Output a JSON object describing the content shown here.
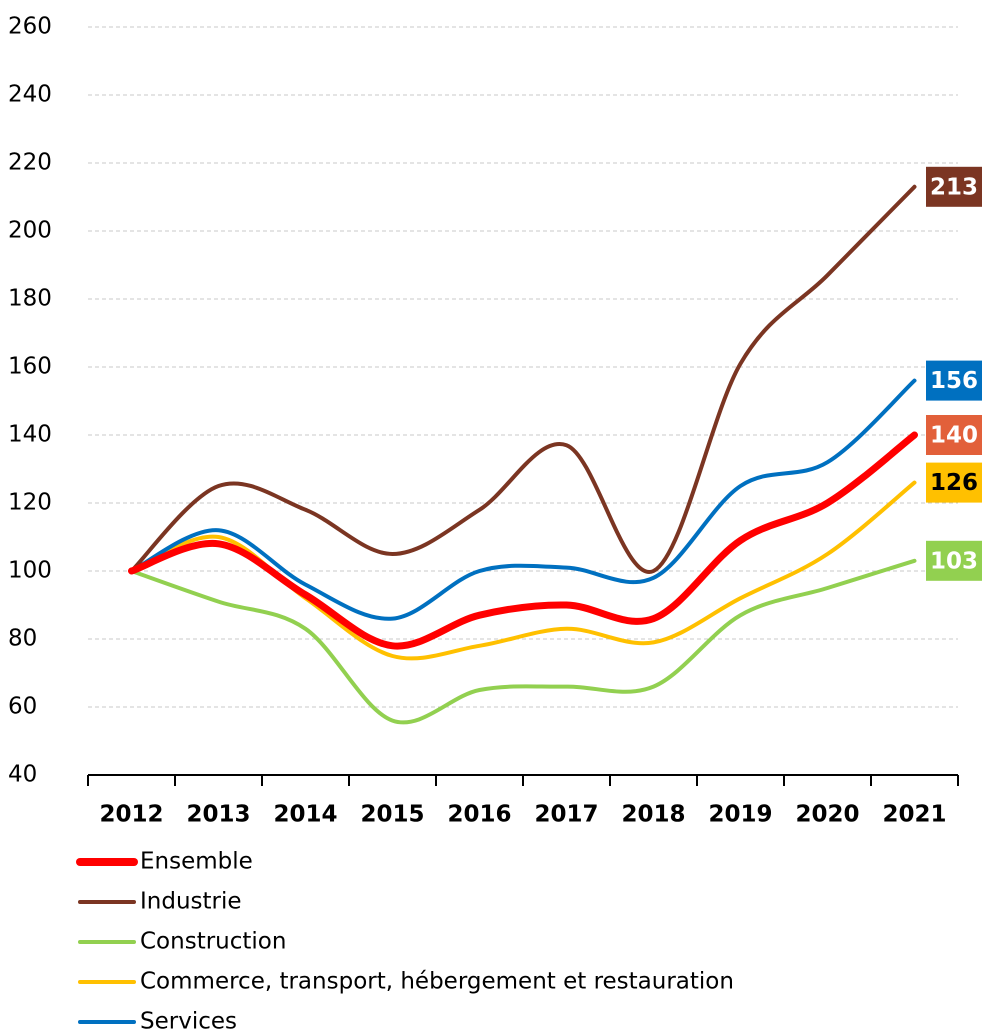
{
  "chart_data": {
    "type": "line",
    "categories": [
      "2012",
      "2013",
      "2014",
      "2015",
      "2016",
      "2017",
      "2018",
      "2019",
      "2020",
      "2021"
    ],
    "series": [
      {
        "name": "Ensemble",
        "color": "#ff0000",
        "label_color": "#e2603a",
        "label_text_color": "#ffffff",
        "values": [
          100,
          108,
          93,
          78,
          87,
          90,
          86,
          109,
          120,
          140
        ]
      },
      {
        "name": "Industrie",
        "color": "#7b3522",
        "label_color": "#7b3522",
        "label_text_color": "#ffffff",
        "values": [
          100,
          125,
          118,
          105,
          118,
          137,
          100,
          161,
          187,
          213
        ]
      },
      {
        "name": "Construction",
        "color": "#92d050",
        "label_color": "#92d050",
        "label_text_color": "#ffffff",
        "values": [
          100,
          91,
          83,
          56,
          65,
          66,
          66,
          87,
          95,
          103
        ]
      },
      {
        "name": "Commerce, transport, hébergement et restauration",
        "color": "#ffc000",
        "label_color": "#ffc000",
        "label_text_color": "#000000",
        "values": [
          100,
          110,
          92,
          75,
          78,
          83,
          79,
          92,
          105,
          126
        ]
      },
      {
        "name": "Services",
        "color": "#0070c0",
        "label_color": "#0070c0",
        "label_text_color": "#ffffff",
        "values": [
          100,
          112,
          96,
          86,
          100,
          101,
          98,
          125,
          132,
          156
        ]
      }
    ],
    "ylim": [
      40,
      260
    ],
    "yticks": [
      40,
      60,
      80,
      100,
      120,
      140,
      160,
      180,
      200,
      220,
      240,
      260
    ],
    "grid": true
  }
}
